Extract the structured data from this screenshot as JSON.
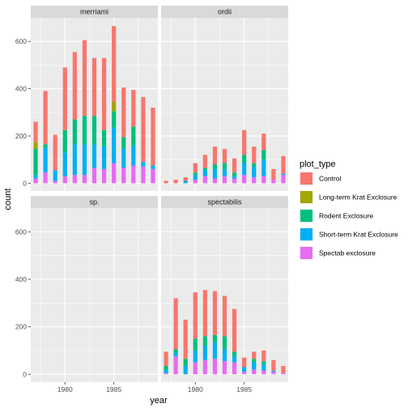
{
  "chart_data": {
    "type": "bar",
    "stacked": true,
    "xlabel": "year",
    "ylabel": "count",
    "xlim": [
      1976.5,
      1989.5
    ],
    "ylim": [
      -33,
      700
    ],
    "x_ticks": [
      1980,
      1985
    ],
    "y_ticks": [
      0,
      200,
      400,
      600
    ],
    "grid": true,
    "legend": {
      "title": "plot_type",
      "position": "right",
      "entries": [
        {
          "name": "Control",
          "color": "#F8766D"
        },
        {
          "name": "Long-term Krat Exclosure",
          "color": "#A3A500"
        },
        {
          "name": "Rodent Exclosure",
          "color": "#00BF7D"
        },
        {
          "name": "Short-term Krat Exclosure",
          "color": "#00B0F6"
        },
        {
          "name": "Spectab exclosure",
          "color": "#E76BF3"
        }
      ]
    },
    "stack_order_bottom_to_top": [
      "Spectab exclosure",
      "Short-term Krat Exclosure",
      "Rodent Exclosure",
      "Long-term Krat Exclosure",
      "Control"
    ],
    "years": [
      1977,
      1978,
      1979,
      1980,
      1981,
      1982,
      1983,
      1984,
      1985,
      1986,
      1987,
      1988,
      1989
    ],
    "panels": [
      {
        "name": "merriami",
        "series": [
          {
            "name": "Spectab exclosure",
            "values": [
              20,
              45,
              10,
              30,
              35,
              35,
              65,
              60,
              85,
              65,
              75,
              70,
              60
            ]
          },
          {
            "name": "Short-term Krat Exclosure",
            "values": [
              15,
              105,
              45,
              100,
              130,
              130,
              100,
              95,
              150,
              80,
              85,
              20,
              15
            ]
          },
          {
            "name": "Rodent Exclosure",
            "values": [
              110,
              15,
              0,
              95,
              105,
              120,
              120,
              70,
              70,
              50,
              80,
              0,
              0
            ]
          },
          {
            "name": "Long-term Krat Exclosure",
            "values": [
              30,
              0,
              0,
              0,
              0,
              0,
              0,
              0,
              40,
              0,
              0,
              0,
              0
            ]
          },
          {
            "name": "Control",
            "values": [
              85,
              225,
              150,
              265,
              285,
              320,
              245,
              305,
              320,
              210,
              155,
              275,
              245
            ]
          }
        ]
      },
      {
        "name": "ordii",
        "series": [
          {
            "name": "Spectab exclosure",
            "values": [
              0,
              0,
              0,
              15,
              30,
              20,
              30,
              20,
              35,
              25,
              30,
              15,
              35
            ]
          },
          {
            "name": "Short-term Krat Exclosure",
            "values": [
              0,
              0,
              10,
              20,
              25,
              40,
              30,
              10,
              50,
              45,
              70,
              0,
              5
            ]
          },
          {
            "name": "Rodent Exclosure",
            "values": [
              0,
              0,
              0,
              10,
              10,
              20,
              25,
              15,
              35,
              15,
              40,
              0,
              0
            ]
          },
          {
            "name": "Long-term Krat Exclosure",
            "values": [
              0,
              0,
              0,
              0,
              0,
              0,
              0,
              0,
              0,
              0,
              0,
              0,
              0
            ]
          },
          {
            "name": "Control",
            "values": [
              10,
              15,
              15,
              40,
              55,
              75,
              60,
              60,
              105,
              70,
              70,
              45,
              75
            ]
          }
        ]
      },
      {
        "name": "sp.",
        "series": []
      },
      {
        "name": "spectabilis",
        "series": [
          {
            "name": "Spectab exclosure",
            "values": [
              5,
              75,
              0,
              50,
              60,
              65,
              55,
              50,
              10,
              20,
              15,
              10,
              5
            ]
          },
          {
            "name": "Short-term Krat Exclosure",
            "values": [
              15,
              15,
              35,
              50,
              60,
              70,
              50,
              25,
              20,
              30,
              25,
              5,
              0
            ]
          },
          {
            "name": "Rodent Exclosure",
            "values": [
              15,
              15,
              30,
              50,
              40,
              30,
              55,
              20,
              0,
              15,
              15,
              0,
              0
            ]
          },
          {
            "name": "Long-term Krat Exclosure",
            "values": [
              0,
              0,
              0,
              0,
              0,
              0,
              0,
              0,
              0,
              0,
              0,
              0,
              0
            ]
          },
          {
            "name": "Control",
            "values": [
              60,
              215,
              165,
              195,
              195,
              185,
              170,
              180,
              40,
              30,
              45,
              45,
              30
            ]
          }
        ]
      }
    ]
  }
}
